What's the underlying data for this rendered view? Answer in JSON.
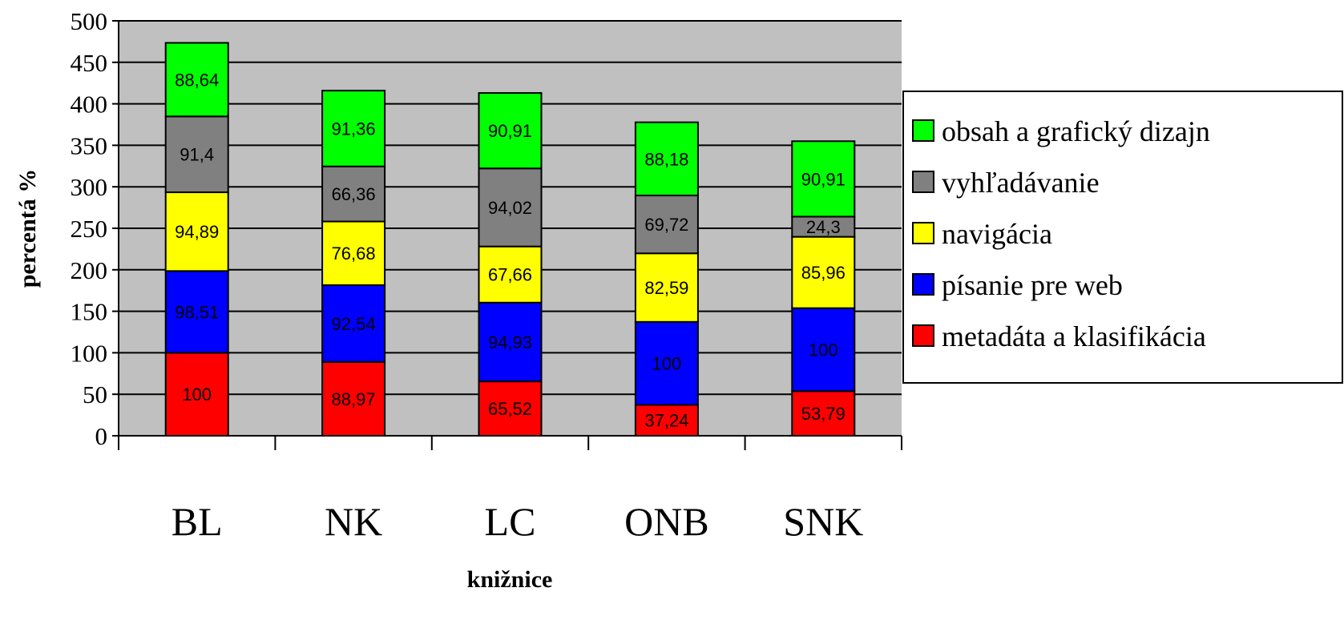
{
  "chart_data": {
    "type": "bar",
    "stacked": true,
    "title": "",
    "xlabel": "knižnice",
    "ylabel": "percentá %",
    "ylim": [
      0,
      500
    ],
    "yticks": [
      0,
      50,
      100,
      150,
      200,
      250,
      300,
      350,
      400,
      450,
      500
    ],
    "grid": true,
    "legend_position": "right",
    "plot_background": "#C0C0C0",
    "categories": [
      "BL",
      "NK",
      "LC",
      "ONB",
      "SNK"
    ],
    "series": [
      {
        "name": "metadáta a klasifikácia",
        "color": "#FF0000",
        "values": [
          100,
          88.97,
          65.52,
          37.24,
          53.79
        ],
        "labels": [
          "100",
          "88,97",
          "65,52",
          "37,24",
          "53,79"
        ]
      },
      {
        "name": "písanie pre web",
        "color": "#0000FF",
        "values": [
          98.51,
          92.54,
          94.93,
          100,
          100
        ],
        "labels": [
          "98,51",
          "92,54",
          "94,93",
          "100",
          "100"
        ]
      },
      {
        "name": "navigácia",
        "color": "#FFFF00",
        "values": [
          94.89,
          76.68,
          67.66,
          82.59,
          85.96
        ],
        "labels": [
          "94,89",
          "76,68",
          "67,66",
          "82,59",
          "85,96"
        ]
      },
      {
        "name": "vyhľadávanie",
        "color": "#808080",
        "values": [
          91.4,
          66.36,
          94.02,
          69.72,
          24.3
        ],
        "labels": [
          "91,4",
          "66,36",
          "94,02",
          "69,72",
          "24,3"
        ]
      },
      {
        "name": "obsah a grafický dizajn",
        "color": "#00FF00",
        "values": [
          88.64,
          91.36,
          90.91,
          88.18,
          90.91
        ],
        "labels": [
          "88,64",
          "91,36",
          "90,91",
          "88,18",
          "90,91"
        ]
      }
    ],
    "legend_order": [
      "obsah a grafický dizajn",
      "vyhľadávanie",
      "navigácia",
      "písanie pre web",
      "metadáta a klasifikácia"
    ]
  }
}
